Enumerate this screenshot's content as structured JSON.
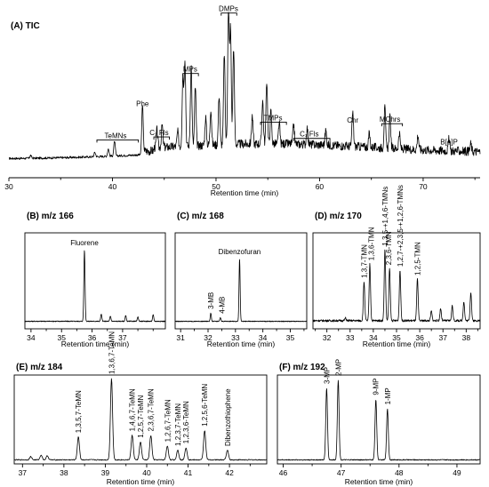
{
  "chart_data": [
    {
      "type": "line",
      "title": "(A) TIC",
      "xlabel": "Retention time (min)",
      "xlim": [
        30,
        75.5
      ],
      "xticks": [
        30,
        40,
        50,
        60,
        70
      ],
      "annotations": [
        {
          "text": "TeMNs",
          "x": 40.3,
          "range": [
            38.5,
            42.5
          ],
          "bracket": true
        },
        {
          "text": "Phe",
          "x": 42.9
        },
        {
          "text": "C₁ Fls",
          "x": 44.5,
          "range": [
            44.0,
            45.5
          ],
          "bracket": true
        },
        {
          "text": "MPs",
          "x": 47.5,
          "range": [
            46.8,
            48.3
          ],
          "bracket": true
        },
        {
          "text": "DMPs",
          "x": 51.2,
          "range": [
            50.5,
            52.0
          ],
          "bracket": true
        },
        {
          "text": "TMPs",
          "x": 55.5,
          "range": [
            54.3,
            56.8
          ],
          "bracket": true
        },
        {
          "text": "C₁ Fls",
          "x": 59.0,
          "range": [
            57.5,
            61.0
          ],
          "bracket": true
        },
        {
          "text": "Chr",
          "x": 63.2
        },
        {
          "text": "MChrs",
          "x": 66.8,
          "range": [
            66.0,
            68.0
          ],
          "bracket": true
        },
        {
          "text": "B[e]P",
          "x": 72.5
        }
      ],
      "peaks": [
        {
          "x": 32.1,
          "y": 2
        },
        {
          "x": 38.3,
          "y": 3
        },
        {
          "x": 39.6,
          "y": 5
        },
        {
          "x": 40.2,
          "y": 10
        },
        {
          "x": 42.9,
          "y": 34
        },
        {
          "x": 44.3,
          "y": 12
        },
        {
          "x": 44.8,
          "y": 15
        },
        {
          "x": 46.3,
          "y": 10
        },
        {
          "x": 46.8,
          "y": 48
        },
        {
          "x": 47.0,
          "y": 59
        },
        {
          "x": 47.6,
          "y": 55
        },
        {
          "x": 48.0,
          "y": 40
        },
        {
          "x": 49.0,
          "y": 19
        },
        {
          "x": 49.5,
          "y": 25
        },
        {
          "x": 50.3,
          "y": 34
        },
        {
          "x": 50.8,
          "y": 62
        },
        {
          "x": 51.2,
          "y": 96
        },
        {
          "x": 51.4,
          "y": 78
        },
        {
          "x": 51.7,
          "y": 66
        },
        {
          "x": 53.5,
          "y": 19
        },
        {
          "x": 54.5,
          "y": 30
        },
        {
          "x": 54.9,
          "y": 43
        },
        {
          "x": 55.3,
          "y": 22
        },
        {
          "x": 56.1,
          "y": 14
        },
        {
          "x": 57.5,
          "y": 13
        },
        {
          "x": 58.8,
          "y": 11
        },
        {
          "x": 60.6,
          "y": 10
        },
        {
          "x": 63.2,
          "y": 23
        },
        {
          "x": 64.8,
          "y": 9
        },
        {
          "x": 66.3,
          "y": 27
        },
        {
          "x": 66.8,
          "y": 21
        },
        {
          "x": 67.7,
          "y": 10
        },
        {
          "x": 69.5,
          "y": 10
        },
        {
          "x": 72.5,
          "y": 8
        },
        {
          "x": 74.6,
          "y": 5
        }
      ]
    },
    {
      "type": "line",
      "title": "(B) m/z 166",
      "xlabel": "Retention time (min)",
      "xlim": [
        33.8,
        38.4
      ],
      "xticks": [
        34,
        35,
        36,
        37
      ],
      "annotations": [
        {
          "text": "Fluorene",
          "x": 35.75
        }
      ],
      "peaks": [
        {
          "x": 35.75,
          "y": 100
        },
        {
          "x": 36.3,
          "y": 10
        },
        {
          "x": 36.6,
          "y": 7
        },
        {
          "x": 37.1,
          "y": 8
        },
        {
          "x": 37.5,
          "y": 6
        },
        {
          "x": 38.0,
          "y": 9
        }
      ]
    },
    {
      "type": "line",
      "title": "(C) m/z 168",
      "xlabel": "Retention time (min)",
      "xlim": [
        30.8,
        35.6
      ],
      "xticks": [
        31,
        32,
        33,
        34,
        35
      ],
      "annotations": [
        {
          "text": "3-MB",
          "x": 32.1
        },
        {
          "text": "4-MB",
          "x": 32.5
        },
        {
          "text": "Dibenzofuran",
          "x": 33.15
        }
      ],
      "peaks": [
        {
          "x": 32.1,
          "y": 13
        },
        {
          "x": 32.45,
          "y": 6
        },
        {
          "x": 33.15,
          "y": 100
        }
      ]
    },
    {
      "type": "line",
      "title": "(D) m/z 170",
      "xlabel": "Retention time (min)",
      "xlim": [
        31.4,
        38.6
      ],
      "xticks": [
        32,
        33,
        34,
        35,
        36,
        37,
        38
      ],
      "annotations": [
        {
          "text": "1,3,7-TMN",
          "x": 33.6
        },
        {
          "text": "1,3,6-TMN",
          "x": 33.9
        },
        {
          "text": "1,3,5-+1,4,6-TMNs",
          "x": 34.5
        },
        {
          "text": "2,3,6-TMN",
          "x": 34.65
        },
        {
          "text": "1,2,7-+2,3,5-+1,2,6-TMNs",
          "x": 35.15
        },
        {
          "text": "1,2,5-TMN",
          "x": 35.9
        }
      ],
      "peaks": [
        {
          "x": 32.8,
          "y": 3
        },
        {
          "x": 33.6,
          "y": 45
        },
        {
          "x": 33.85,
          "y": 65
        },
        {
          "x": 34.5,
          "y": 82
        },
        {
          "x": 34.7,
          "y": 60
        },
        {
          "x": 35.15,
          "y": 58
        },
        {
          "x": 35.9,
          "y": 48
        },
        {
          "x": 36.5,
          "y": 11
        },
        {
          "x": 36.9,
          "y": 14
        },
        {
          "x": 37.4,
          "y": 17
        },
        {
          "x": 37.9,
          "y": 22
        },
        {
          "x": 38.2,
          "y": 33
        }
      ]
    },
    {
      "type": "line",
      "title": "(E) m/z 184",
      "xlabel": "Retention time (min)",
      "xlim": [
        36.8,
        42.9
      ],
      "xticks": [
        37,
        38,
        39,
        40,
        41,
        42
      ],
      "annotations": [
        {
          "text": "1,3,5,7-TeMN",
          "x": 38.35
        },
        {
          "text": "1,3,6,7-TeMN",
          "x": 39.15
        },
        {
          "text": "1,4,6,7-TeMN",
          "x": 39.65
        },
        {
          "text": "1,2,5,7-TeMN",
          "x": 39.85
        },
        {
          "text": "2,3,6,7-TeMN",
          "x": 40.1
        },
        {
          "text": "1,2,6,7-TeMN",
          "x": 40.5
        },
        {
          "text": "1,2,3,7-TeMN",
          "x": 40.75
        },
        {
          "text": "1,2,3,6-TeMN",
          "x": 40.95
        },
        {
          "text": "1,2,5,6-TeMN",
          "x": 41.4
        },
        {
          "text": "Dibenzothiophene",
          "x": 41.95
        }
      ],
      "peaks": [
        {
          "x": 37.2,
          "y": 4
        },
        {
          "x": 37.45,
          "y": 6
        },
        {
          "x": 37.6,
          "y": 5
        },
        {
          "x": 38.35,
          "y": 28
        },
        {
          "x": 39.15,
          "y": 100
        },
        {
          "x": 39.65,
          "y": 30
        },
        {
          "x": 39.85,
          "y": 22
        },
        {
          "x": 40.1,
          "y": 30
        },
        {
          "x": 40.5,
          "y": 17
        },
        {
          "x": 40.75,
          "y": 12
        },
        {
          "x": 40.95,
          "y": 15
        },
        {
          "x": 41.4,
          "y": 36
        },
        {
          "x": 41.95,
          "y": 12
        }
      ]
    },
    {
      "type": "line",
      "title": "(F) m/z 192",
      "xlabel": "Retention time (min)",
      "xlim": [
        45.9,
        49.4
      ],
      "xticks": [
        46,
        47,
        48,
        49
      ],
      "annotations": [
        {
          "text": "3-MP",
          "x": 46.75
        },
        {
          "text": "2-MP",
          "x": 46.95
        },
        {
          "text": "9-MP",
          "x": 47.6
        },
        {
          "text": "1-MP",
          "x": 47.8
        }
      ],
      "peaks": [
        {
          "x": 46.75,
          "y": 90
        },
        {
          "x": 46.95,
          "y": 100
        },
        {
          "x": 47.6,
          "y": 76
        },
        {
          "x": 47.8,
          "y": 64
        }
      ]
    }
  ]
}
